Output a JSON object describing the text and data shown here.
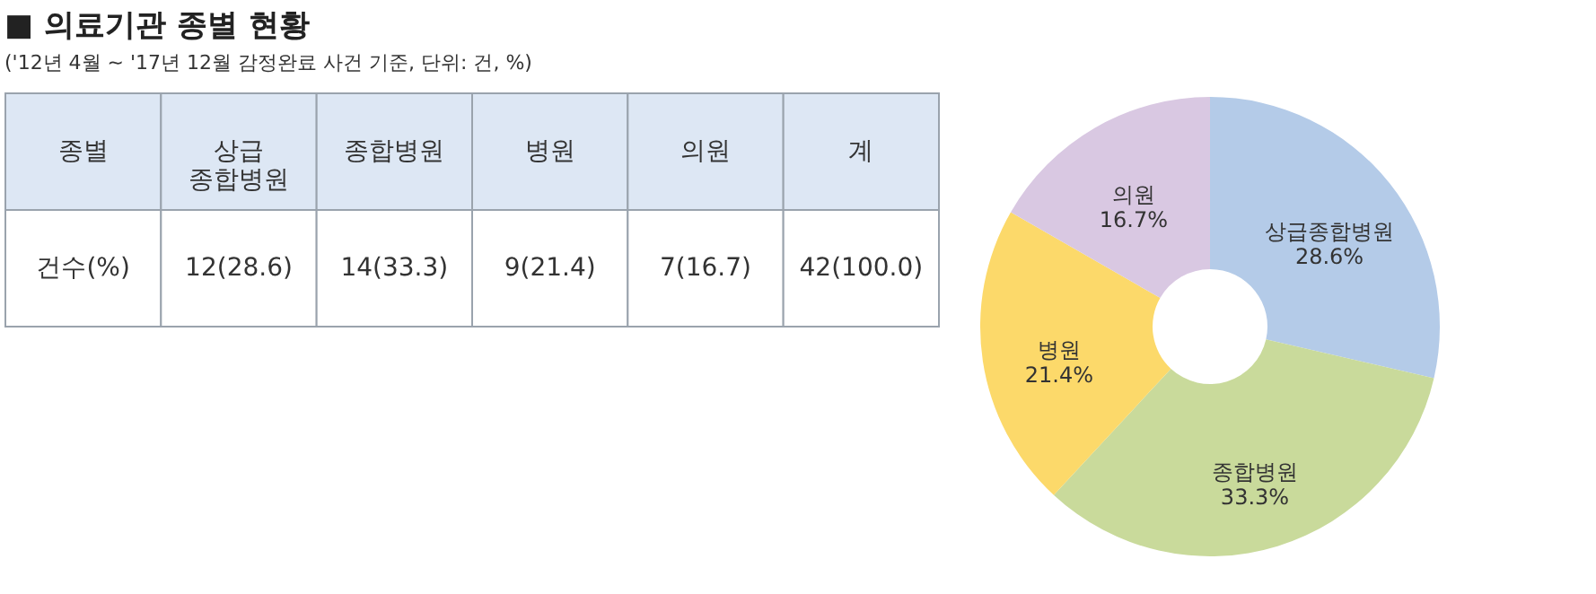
{
  "chart_data": [
    {
      "type": "other",
      "title": "■ 의료기관 종별 현황",
      "subtitle": "('12년 4월 ~ '17년 12월 감정완료 사건 기준, 단위: 건, %)",
      "xlabel": "종별",
      "ylabel": "건수(%)",
      "categories": [
        "상급 종합병원",
        "종합병원",
        "병원",
        "의원",
        "계"
      ],
      "value_labels": [
        "12(28.6)",
        "14(33.3)",
        "9(21.4)",
        "7(16.7)",
        "42(100.0)"
      ]
    },
    {
      "type": "donut",
      "categories": [
        "상급종합병원",
        "종합병원",
        "병원",
        "의원"
      ],
      "values": [
        28.6,
        33.3,
        21.4,
        16.7
      ],
      "colors": [
        "#b4cbe8",
        "#c9da9b",
        "#fcd96a",
        "#d9c8e2"
      ],
      "value_labels": [
        "28.6%",
        "33.3%",
        "21.4%",
        "16.7%"
      ],
      "legend": false
    }
  ]
}
